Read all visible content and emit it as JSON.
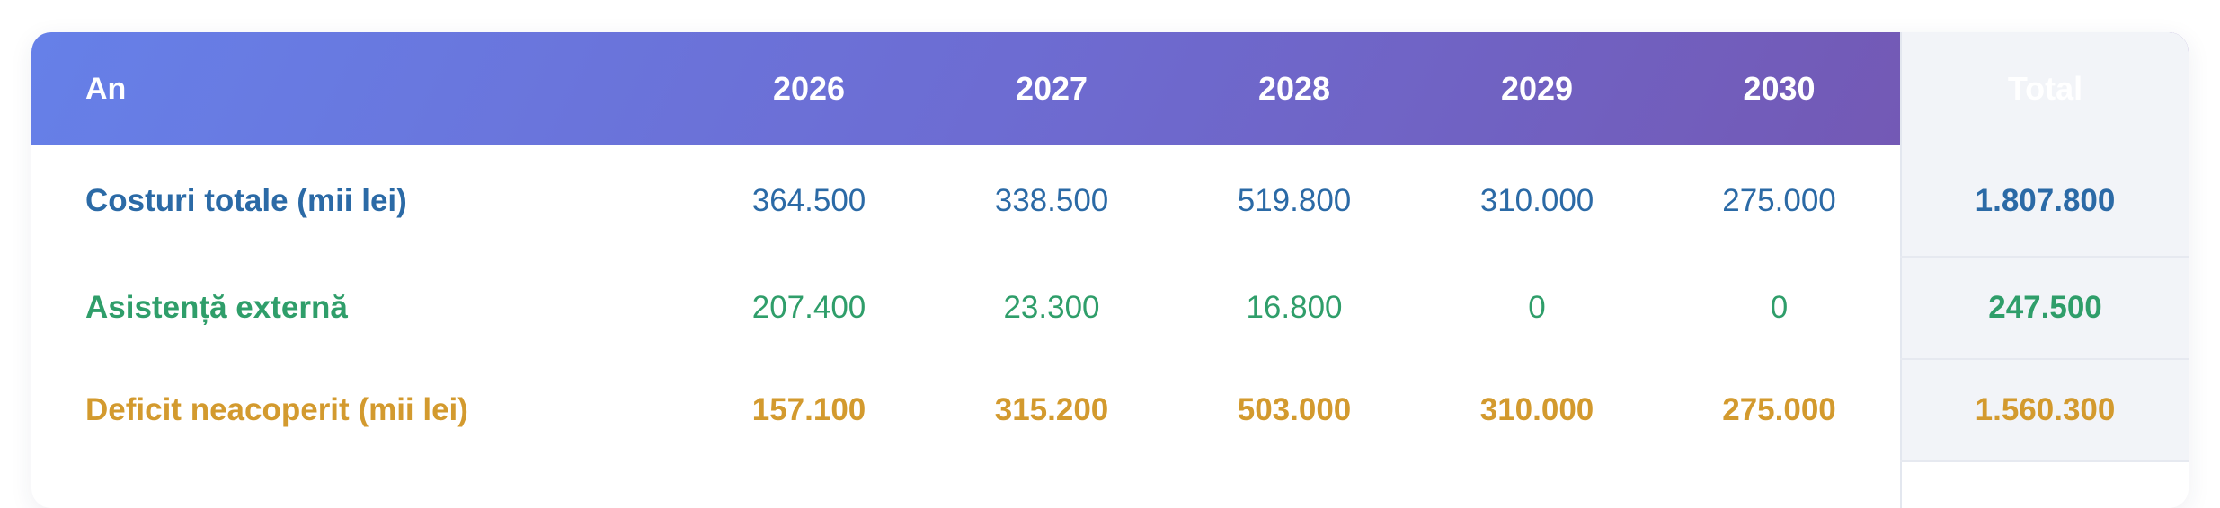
{
  "table": {
    "header": {
      "label": "An",
      "years": [
        "2026",
        "2027",
        "2028",
        "2029",
        "2030"
      ],
      "total": "Total"
    },
    "rows": [
      {
        "label": "Costuri totale (mii lei)",
        "values": [
          "364.500",
          "338.500",
          "519.800",
          "310.000",
          "275.000"
        ],
        "total": "1.807.800",
        "color": "#2b6aa6"
      },
      {
        "label": "Asistență externă",
        "values": [
          "207.400",
          "23.300",
          "16.800",
          "0",
          "0"
        ],
        "total": "247.500",
        "color": "#2f9e6a"
      },
      {
        "label": "Deficit neacoperit (mii lei)",
        "values": [
          "157.100",
          "315.200",
          "503.000",
          "310.000",
          "275.000"
        ],
        "total": "1.560.300",
        "color": "#d39a2e"
      }
    ],
    "header_gradient": [
      "#6680e8",
      "#7553ac"
    ]
  }
}
